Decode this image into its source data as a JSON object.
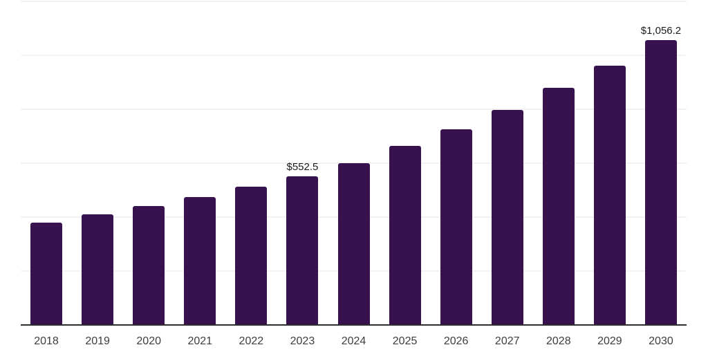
{
  "chart_data": {
    "type": "bar",
    "title": "",
    "xlabel": "",
    "ylabel": "",
    "categories": [
      "2018",
      "2019",
      "2020",
      "2021",
      "2022",
      "2023",
      "2024",
      "2025",
      "2026",
      "2027",
      "2028",
      "2029",
      "2030"
    ],
    "values": [
      379.8,
      409.1,
      441.5,
      474.9,
      513.0,
      552.5,
      600.6,
      663.0,
      725.3,
      796.7,
      880.2,
      961.6,
      1056.2
    ],
    "data_labels": [
      "",
      "",
      "",
      "",
      "",
      "$552.5",
      "",
      "",
      "",
      "",
      "",
      "",
      "$1,056.2"
    ],
    "ylim": [
      0,
      1200
    ],
    "gridline_step": 200,
    "grid": "horizontal-only",
    "legend": "none",
    "y_axis_tick_labels": "none",
    "colors": {
      "bar": "#38124e",
      "axis_line": "#2e2e2e",
      "gridline": "#f2f2f2",
      "value_label": "#1a1a1a",
      "tick_label": "#3d3d3d",
      "background": "#ffffff"
    }
  }
}
